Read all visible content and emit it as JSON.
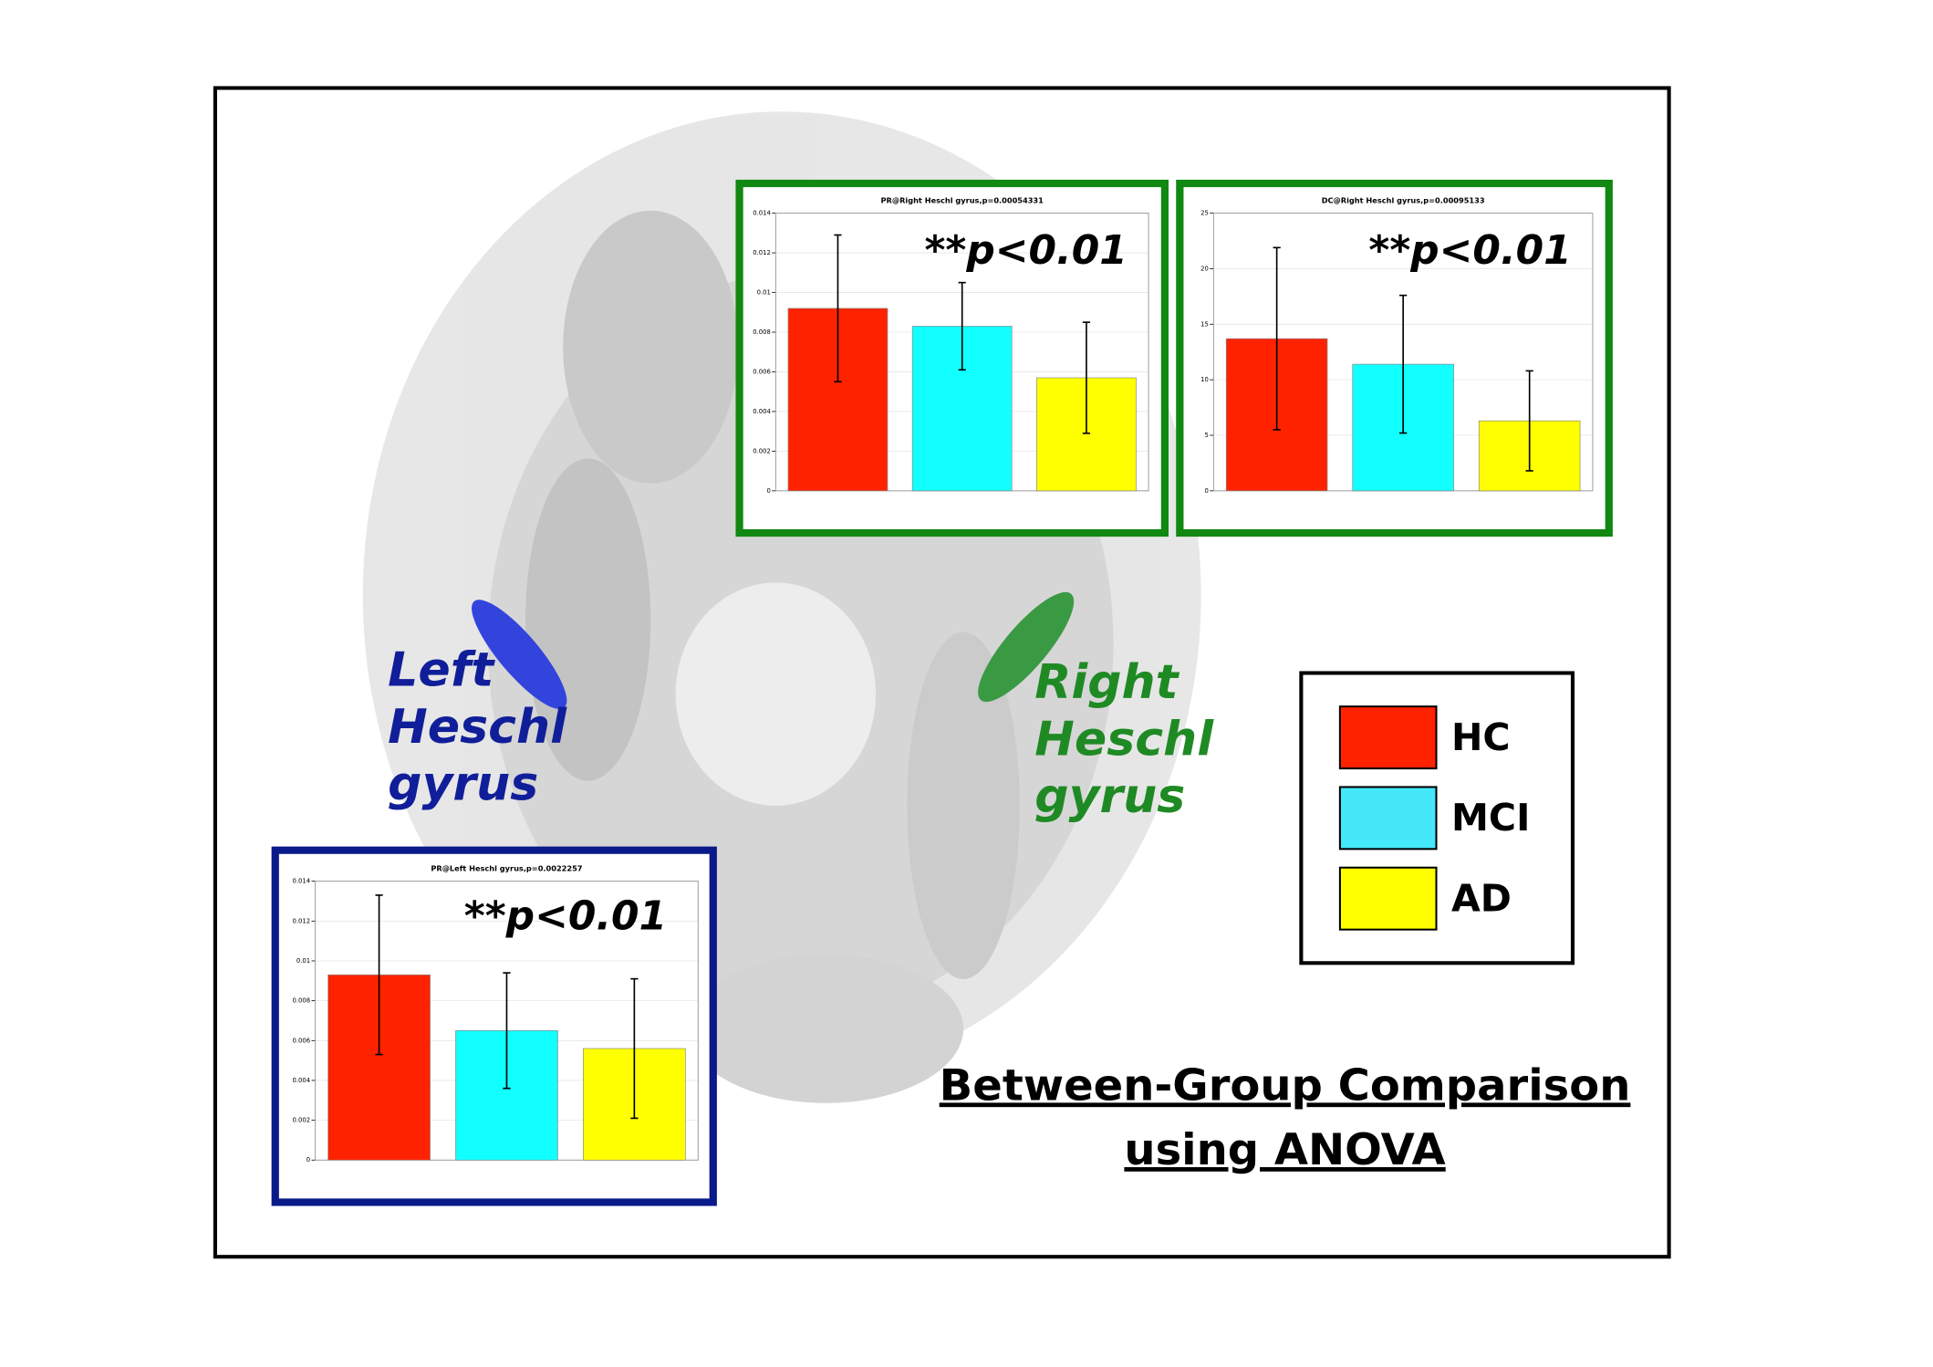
{
  "chart_data": [
    {
      "type": "bar",
      "title": "PR@Right Heschl gyrus,p=0.00054331",
      "annotation": "**p<0.01",
      "values": [
        0.0092,
        0.0083,
        0.0057
      ],
      "errors": [
        0.0037,
        0.0022,
        0.0028
      ],
      "colors": [
        "#ff2200",
        "#11ffff",
        "#ffff00"
      ],
      "frame_color": "#118811",
      "ylim": [
        0,
        0.014
      ],
      "yticks": [
        0,
        0.002,
        0.004,
        0.006,
        0.008,
        0.01,
        0.012,
        0.014
      ]
    },
    {
      "type": "bar",
      "title": "DC@Right Heschl gyrus,p=0.00095133",
      "annotation": "**p<0.01",
      "values": [
        13.7,
        11.4,
        6.3
      ],
      "errors": [
        8.2,
        6.2,
        4.5
      ],
      "colors": [
        "#ff2200",
        "#11ffff",
        "#ffff00"
      ],
      "frame_color": "#118811",
      "ylim": [
        0,
        25
      ],
      "yticks": [
        0,
        5,
        10,
        15,
        20,
        25
      ]
    },
    {
      "type": "bar",
      "title": "PR@Left Heschl gyrus,p=0.0022257",
      "annotation": "**p<0.01",
      "values": [
        0.0093,
        0.0065,
        0.0056
      ],
      "errors": [
        0.004,
        0.0029,
        0.0035
      ],
      "colors": [
        "#ff2200",
        "#11ffff",
        "#ffff00"
      ],
      "frame_color": "#0a1a8a",
      "ylim": [
        0,
        0.014
      ],
      "yticks": [
        0,
        0.002,
        0.004,
        0.006,
        0.008,
        0.01,
        0.012,
        0.014
      ]
    }
  ],
  "legend": [
    {
      "name": "HC",
      "color": "#ff2200"
    },
    {
      "name": "MCI",
      "color": "#44e8f8"
    },
    {
      "name": "AD",
      "color": "#ffff00"
    }
  ],
  "regions": {
    "left": [
      "Left",
      "Heschl",
      "gyrus"
    ],
    "right": [
      "Right",
      "Heschl",
      "gyrus"
    ]
  },
  "caption": [
    "Between-Group Comparison",
    "using ANOVA"
  ]
}
